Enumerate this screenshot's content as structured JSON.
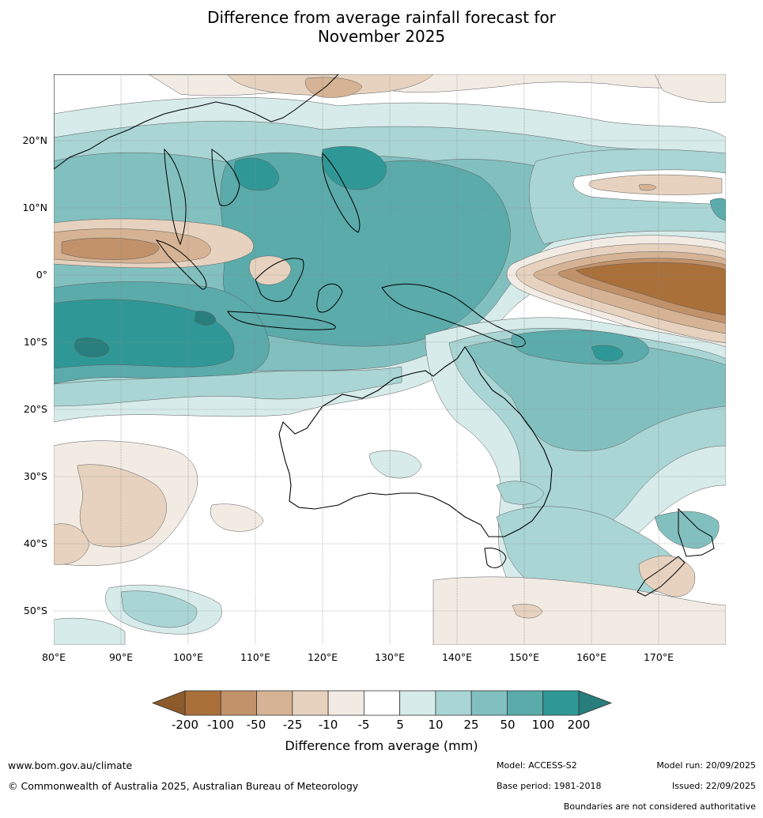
{
  "title": {
    "line1": "Difference from average rainfall forecast for",
    "line2": "November 2025"
  },
  "map": {
    "lat_labels": [
      "20°N",
      "10°N",
      "0°",
      "10°S",
      "20°S",
      "30°S",
      "40°S",
      "50°S"
    ],
    "lon_labels": [
      "80°E",
      "90°E",
      "100°E",
      "110°E",
      "120°E",
      "130°E",
      "140°E",
      "150°E",
      "160°E",
      "170°E"
    ]
  },
  "colorbar": {
    "labels": [
      "-200",
      "-100",
      "-50",
      "-25",
      "-10",
      "-5",
      "5",
      "10",
      "25",
      "50",
      "100",
      "200"
    ],
    "colors": [
      "#a9703a",
      "#c1926a",
      "#d5b394",
      "#e6d2bf",
      "#f2ebe4",
      "#ffffff",
      "#d6ebea",
      "#a9d5d4",
      "#82c0bf",
      "#5aabaa",
      "#2f9896"
    ],
    "low_extend_color": "#8c5a2b",
    "high_extend_color": "#287e7c",
    "title": "Difference from average (mm)"
  },
  "footer": {
    "website": "www.bom.gov.au/climate",
    "copyright": "© Commonwealth of Australia 2025, Australian Bureau of Meteorology",
    "model": "Model: ACCESS-S2",
    "base_period": "Base period: 1981-2018",
    "model_run": "Model run: 20/09/2025",
    "issued": "Issued: 22/09/2025",
    "boundaries_note": "Boundaries are not considered authoritative"
  }
}
